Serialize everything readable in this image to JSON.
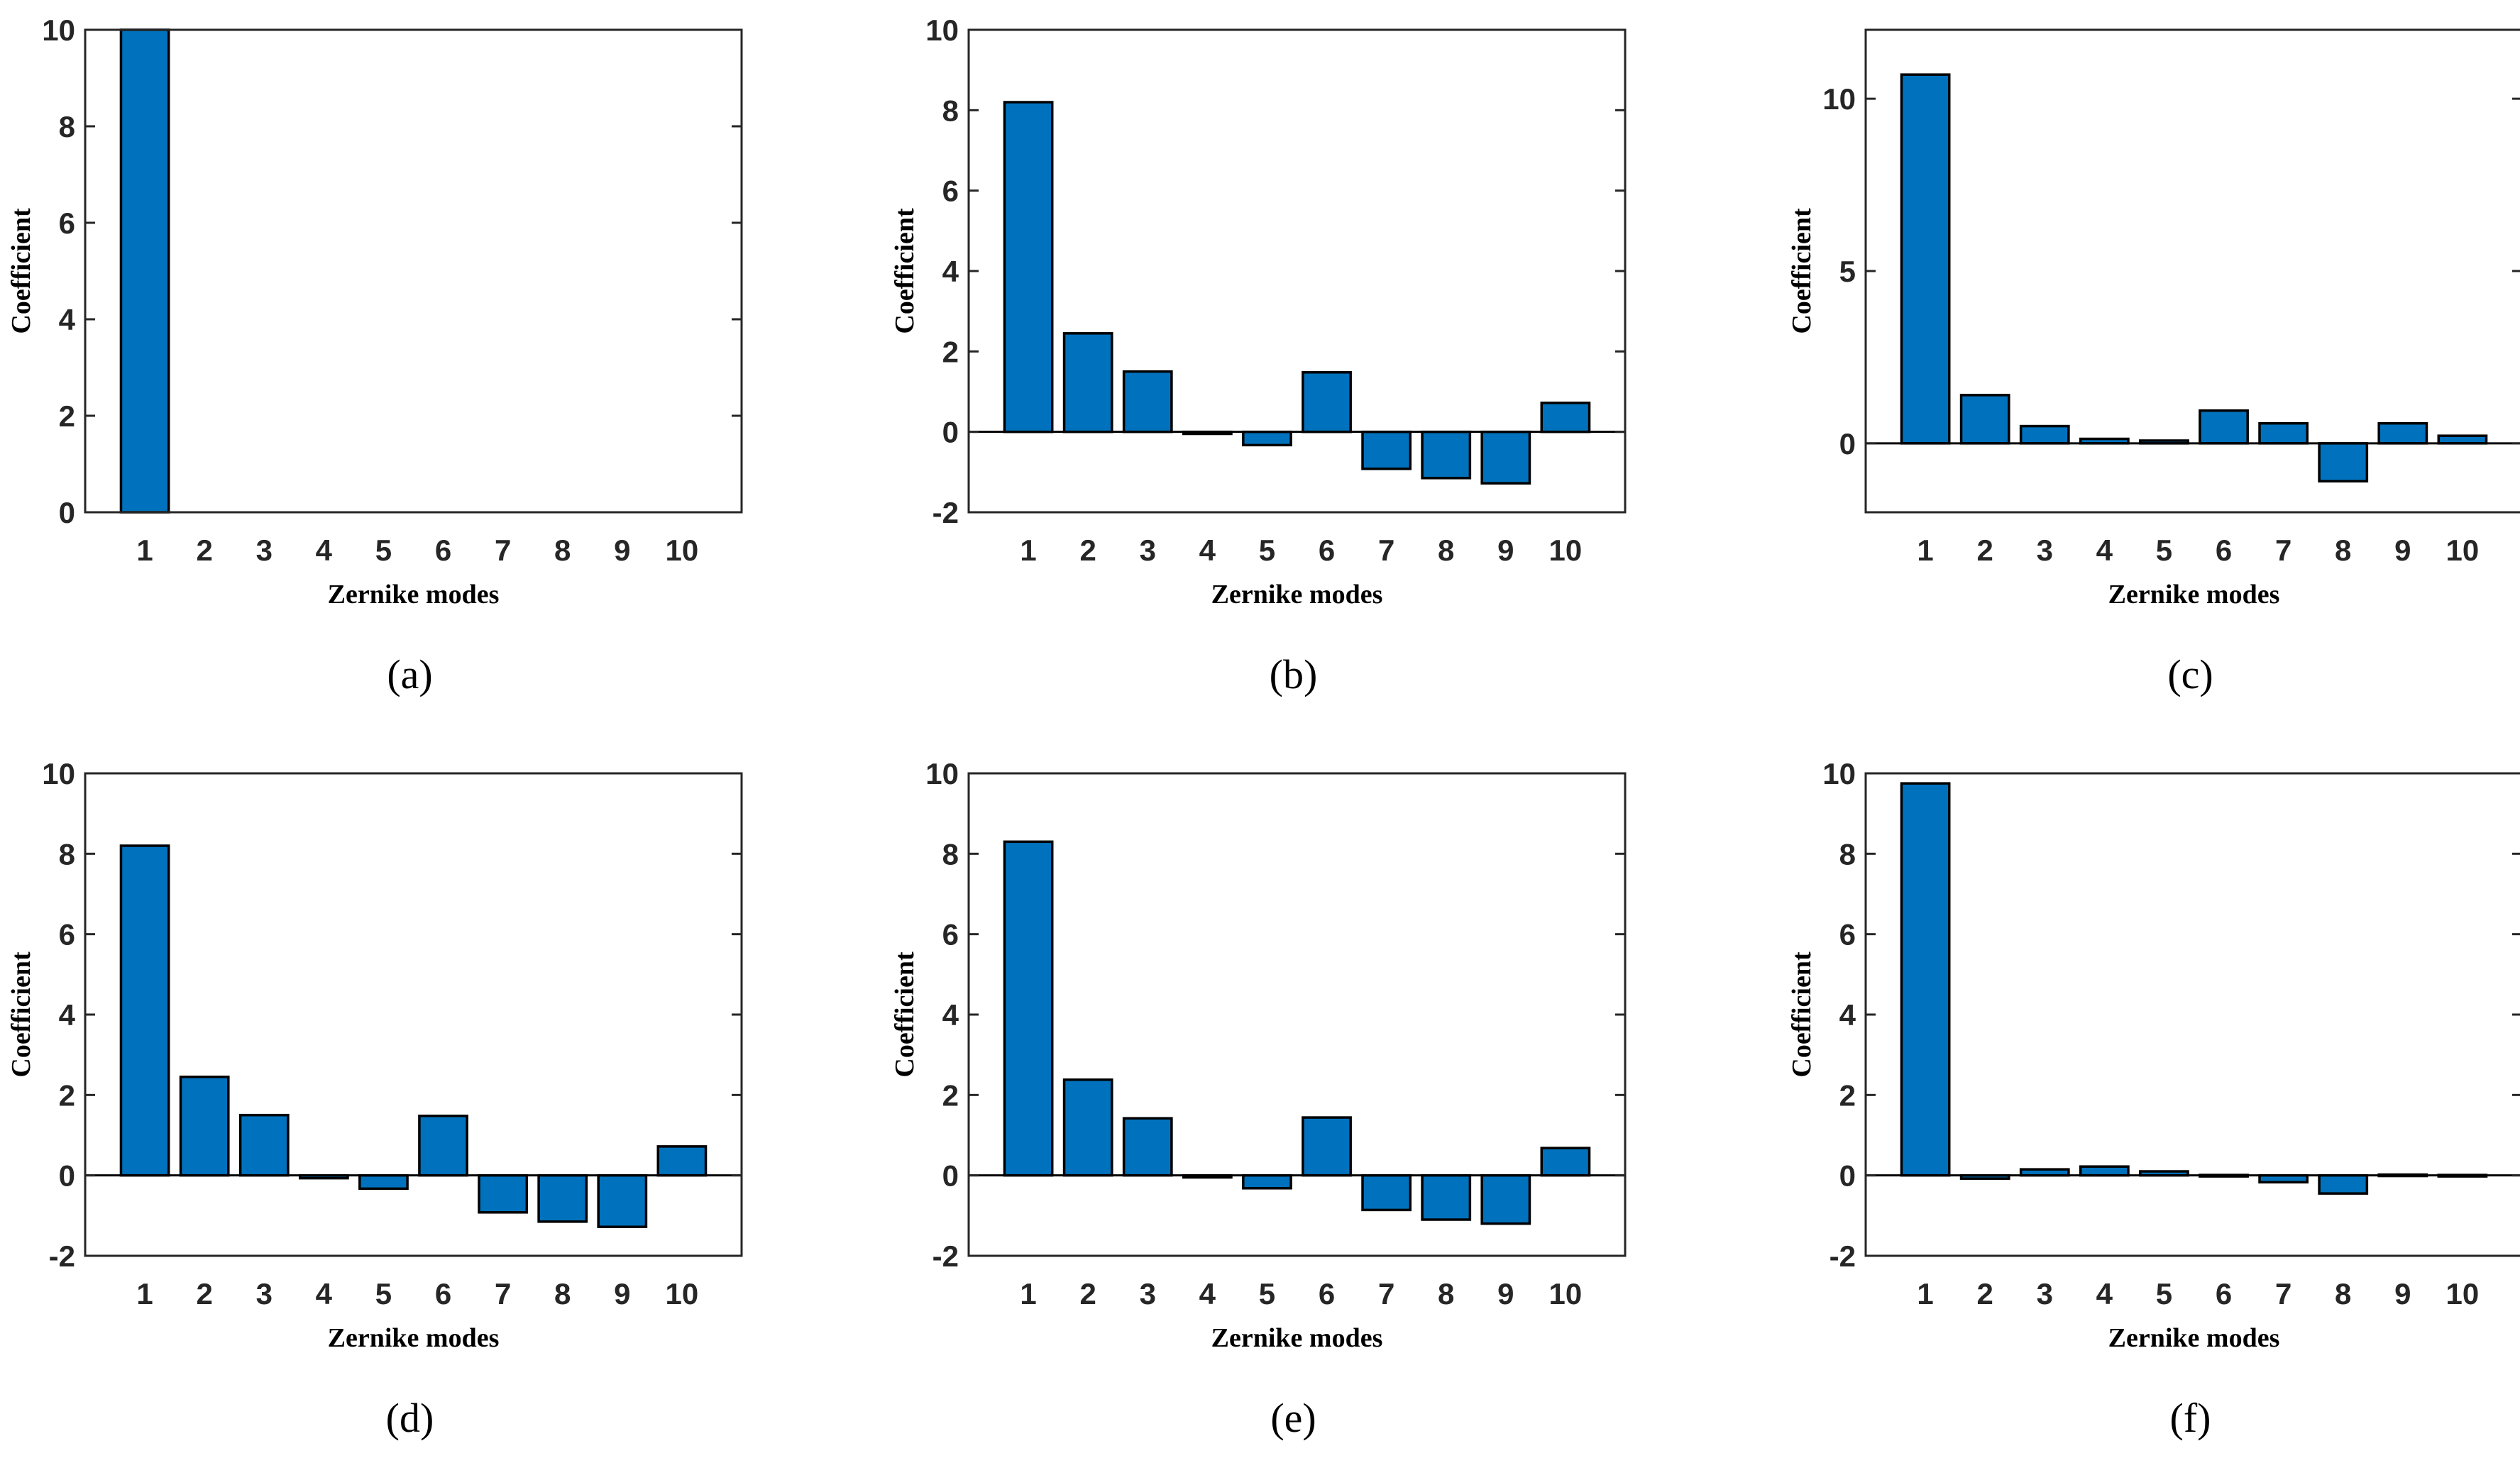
{
  "chart_data": [
    {
      "panel_label": "(a)",
      "type": "bar",
      "xlabel": "Zernike modes",
      "ylabel": "Coefficient",
      "categories": [
        "1",
        "2",
        "3",
        "4",
        "5",
        "6",
        "7",
        "8",
        "9",
        "10"
      ],
      "values": [
        10.0,
        0,
        0,
        0,
        0,
        0,
        0,
        0,
        0,
        0
      ],
      "ylim": [
        0,
        10
      ],
      "yticks": [
        0,
        2,
        4,
        6,
        8,
        10
      ],
      "ytick_labels": [
        "0",
        "2",
        "4",
        "6",
        "8",
        "10"
      ]
    },
    {
      "panel_label": "(b)",
      "type": "bar",
      "xlabel": "Zernike modes",
      "ylabel": "Coefficient",
      "categories": [
        "1",
        "2",
        "3",
        "4",
        "5",
        "6",
        "7",
        "8",
        "9",
        "10"
      ],
      "values": [
        8.2,
        2.45,
        1.5,
        -0.05,
        -0.33,
        1.48,
        -0.92,
        -1.15,
        -1.28,
        0.72
      ],
      "ylim": [
        -2,
        10
      ],
      "yticks": [
        -2,
        0,
        2,
        4,
        6,
        8,
        10
      ],
      "ytick_labels": [
        "-2",
        "0",
        "2",
        "4",
        "6",
        "8",
        "10"
      ]
    },
    {
      "panel_label": "(c)",
      "type": "bar",
      "xlabel": "Zernike modes",
      "ylabel": "Coefficient",
      "categories": [
        "1",
        "2",
        "3",
        "4",
        "5",
        "6",
        "7",
        "8",
        "9",
        "10"
      ],
      "values": [
        10.7,
        1.4,
        0.5,
        0.13,
        0.08,
        0.95,
        0.58,
        -1.1,
        0.58,
        0.22
      ],
      "ylim": [
        -2,
        12
      ],
      "yticks": [
        0,
        5,
        10
      ],
      "ytick_labels": [
        "0",
        "5",
        "10"
      ]
    },
    {
      "panel_label": "(d)",
      "type": "bar",
      "xlabel": "Zernike modes",
      "ylabel": "Coefficient",
      "categories": [
        "1",
        "2",
        "3",
        "4",
        "5",
        "6",
        "7",
        "8",
        "9",
        "10"
      ],
      "values": [
        8.2,
        2.45,
        1.5,
        -0.07,
        -0.33,
        1.48,
        -0.92,
        -1.15,
        -1.28,
        0.72
      ],
      "ylim": [
        -2,
        10
      ],
      "yticks": [
        -2,
        0,
        2,
        4,
        6,
        8,
        10
      ],
      "ytick_labels": [
        "-2",
        "0",
        "2",
        "4",
        "6",
        "8",
        "10"
      ]
    },
    {
      "panel_label": "(e)",
      "type": "bar",
      "xlabel": "Zernike modes",
      "ylabel": "Coefficient",
      "categories": [
        "1",
        "2",
        "3",
        "4",
        "5",
        "6",
        "7",
        "8",
        "9",
        "10"
      ],
      "values": [
        8.3,
        2.38,
        1.42,
        -0.05,
        -0.32,
        1.44,
        -0.86,
        -1.1,
        -1.2,
        0.68
      ],
      "ylim": [
        -2,
        10
      ],
      "yticks": [
        -2,
        0,
        2,
        4,
        6,
        8,
        10
      ],
      "ytick_labels": [
        "-2",
        "0",
        "2",
        "4",
        "6",
        "8",
        "10"
      ]
    },
    {
      "panel_label": "(f)",
      "type": "bar",
      "xlabel": "Zernike modes",
      "ylabel": "Coefficient",
      "categories": [
        "1",
        "2",
        "3",
        "4",
        "5",
        "6",
        "7",
        "8",
        "9",
        "10"
      ],
      "values": [
        9.75,
        -0.08,
        0.15,
        0.22,
        0.1,
        0.01,
        -0.17,
        -0.45,
        0.02,
        0.01
      ],
      "ylim": [
        -2,
        10
      ],
      "yticks": [
        -2,
        0,
        2,
        4,
        6,
        8,
        10
      ],
      "ytick_labels": [
        "-2",
        "0",
        "2",
        "4",
        "6",
        "8",
        "10"
      ]
    }
  ],
  "colors": {
    "bar_fill": "#0072bd",
    "bar_edge": "#000000",
    "axis": "#262626"
  }
}
